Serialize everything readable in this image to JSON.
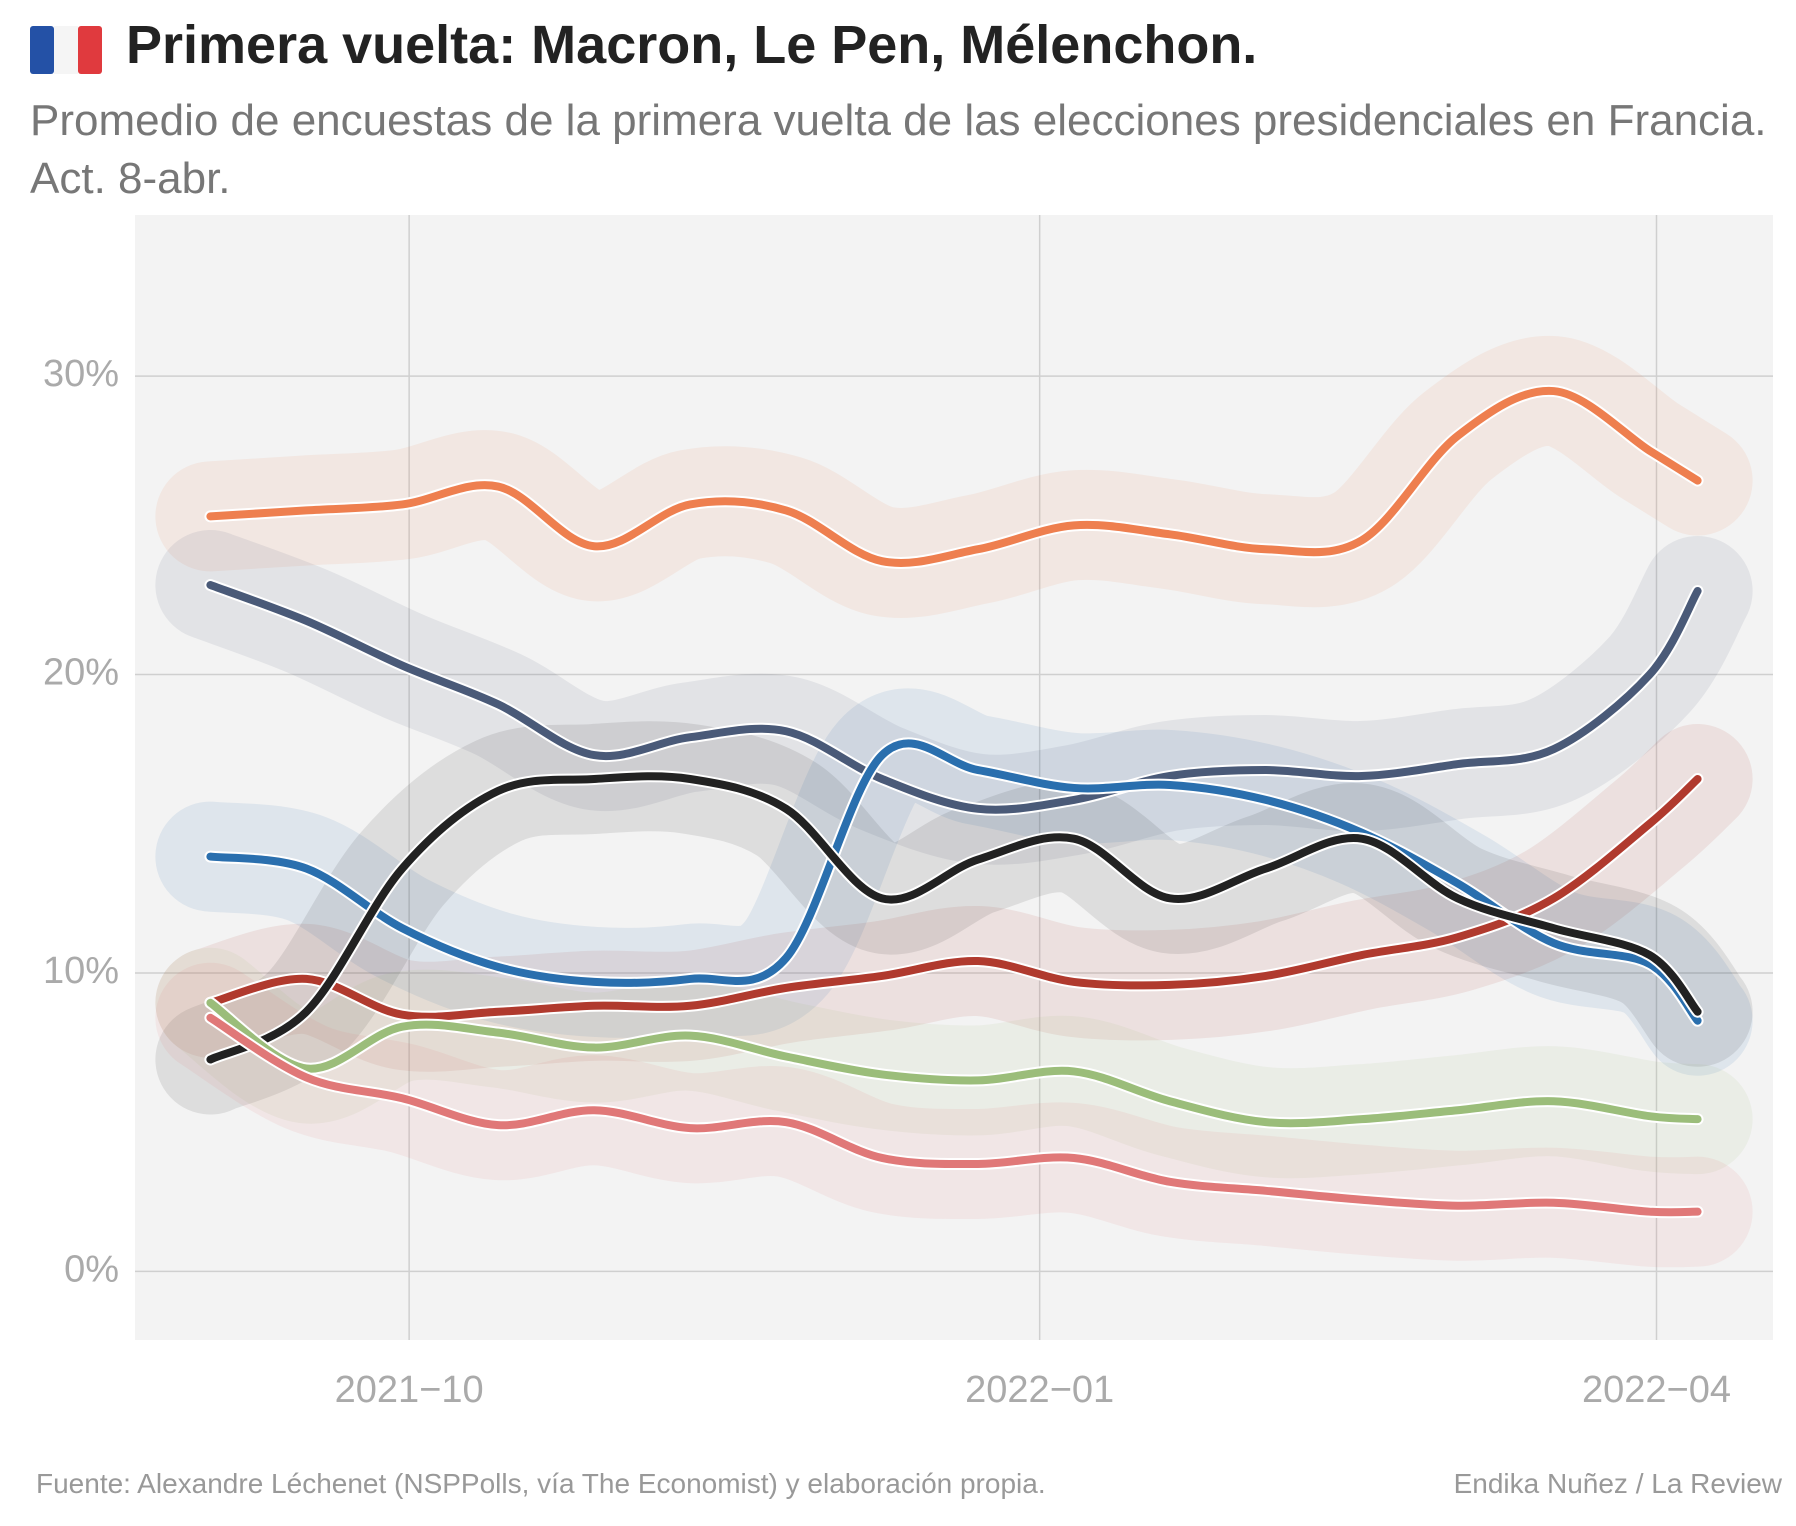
{
  "chart_data": {
    "type": "line",
    "title": "Primera vuelta: Macron, Le Pen, Mélenchon.",
    "subtitle": "Promedio de encuestas de la primera vuelta de las elecciones presidenciales en Francia. Act. 8-abr.",
    "source": "Fuente:  Alexandre Léchenet (NSPPolls, vía The Economist) y elaboración propia.",
    "credit": "Endika Nuñez / La Review",
    "x": [
      "2021-09-02",
      "2021-09-16",
      "2021-09-30",
      "2021-10-14",
      "2021-10-28",
      "2021-11-11",
      "2021-11-25",
      "2021-12-09",
      "2021-12-23",
      "2022-01-06",
      "2022-01-20",
      "2022-02-03",
      "2022-02-17",
      "2022-03-03",
      "2022-03-17",
      "2022-03-31",
      "2022-04-07"
    ],
    "series": [
      {
        "color": "#ee7f4f",
        "values": [
          25.3,
          25.5,
          25.7,
          26.3,
          24.3,
          25.7,
          25.5,
          23.8,
          24.2,
          25.0,
          24.7,
          24.2,
          24.5,
          28.0,
          29.5,
          27.5,
          26.5
        ]
      },
      {
        "color": "#4a5a78",
        "values": [
          23.0,
          21.8,
          20.3,
          19.0,
          17.3,
          17.9,
          18.1,
          16.5,
          15.5,
          15.8,
          16.6,
          16.8,
          16.6,
          17.0,
          17.5,
          20.0,
          22.8
        ]
      },
      {
        "color": "#b03a2e",
        "values": [
          9.0,
          9.8,
          8.6,
          8.7,
          8.9,
          8.9,
          9.5,
          9.9,
          10.4,
          9.7,
          9.6,
          9.9,
          10.6,
          11.2,
          12.5,
          15.0,
          16.5
        ]
      },
      {
        "color": "#2a6fae",
        "values": [
          13.9,
          13.5,
          11.5,
          10.2,
          9.7,
          9.8,
          10.5,
          17.3,
          16.8,
          16.2,
          16.3,
          15.8,
          14.7,
          13.0,
          11.0,
          10.3,
          8.4
        ]
      },
      {
        "color": "#222222",
        "values": [
          7.1,
          8.7,
          13.5,
          16.1,
          16.5,
          16.5,
          15.5,
          12.5,
          13.8,
          14.5,
          12.5,
          13.5,
          14.5,
          12.5,
          11.5,
          10.6,
          8.7
        ]
      },
      {
        "color": "#9bbd7a",
        "values": [
          9.0,
          6.8,
          8.2,
          8.0,
          7.5,
          7.9,
          7.2,
          6.6,
          6.4,
          6.7,
          5.7,
          5.0,
          5.1,
          5.4,
          5.7,
          5.2,
          5.1
        ]
      },
      {
        "color": "#e07878",
        "values": [
          8.5,
          6.5,
          5.8,
          4.9,
          5.4,
          4.8,
          5.0,
          3.8,
          3.6,
          3.8,
          3.0,
          2.7,
          2.4,
          2.2,
          2.3,
          2.0,
          2.0
        ]
      }
    ],
    "xlim": [
      "2021-08-22",
      "2022-04-18"
    ],
    "xticks": [
      {
        "value": "2021-10-01",
        "label": "2021−10"
      },
      {
        "value": "2022-01-01",
        "label": "2022−01"
      },
      {
        "value": "2022-04-01",
        "label": "2022−04"
      }
    ],
    "ylim": [
      -2.3,
      35.4
    ],
    "yticks": [
      {
        "value": 0,
        "label": "0%"
      },
      {
        "value": 10,
        "label": "10%"
      },
      {
        "value": 20,
        "label": "20%"
      },
      {
        "value": 30,
        "label": "30%"
      }
    ],
    "grid": true
  }
}
